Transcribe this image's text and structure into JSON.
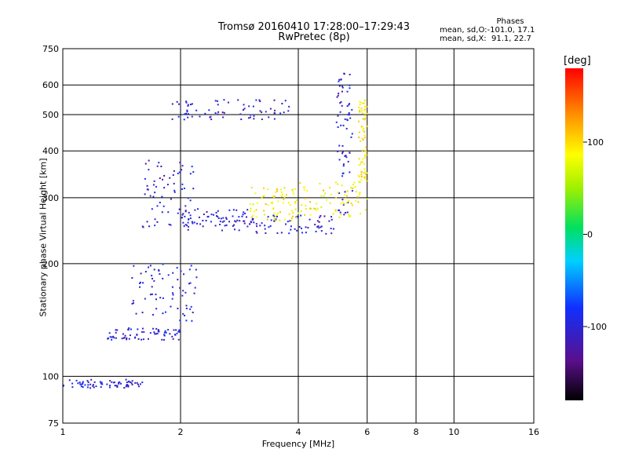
{
  "chart_data": {
    "type": "scatter",
    "title": "Tromsø 20160410 17:28:00–17:29:43",
    "subtitle": "RwPretec (8p)",
    "xlabel": "Frequency [MHz]",
    "ylabel": "Stationary phase Virtual Height [km]",
    "x_scale": "log",
    "y_scale": "log",
    "xlim": [
      1,
      16
    ],
    "ylim": [
      75,
      750
    ],
    "x_ticks": [
      1,
      2,
      4,
      6,
      8,
      10,
      16
    ],
    "y_ticks": [
      75,
      100,
      200,
      300,
      400,
      500,
      600,
      750
    ],
    "grid": true,
    "phase_header": "Phases",
    "phase_stats": [
      "mean, sd,O:-101.0, 17.1",
      "mean, sd,X:  91.1, 22.7"
    ],
    "colorbar": {
      "label": "[deg]",
      "range": [
        -180,
        180
      ],
      "ticks": [
        100,
        0,
        -100
      ],
      "colormap": "rainbow (black-purple-blue-cyan-green-yellow-red)"
    },
    "series": [
      {
        "mode": "O",
        "phase_deg_mean": -101,
        "segments": [
          {
            "f_range": [
              1.0,
              1.6
            ],
            "h_range": [
              93,
              98
            ]
          },
          {
            "f_range": [
              1.3,
              2.0
            ],
            "h_range": [
              125,
              135
            ]
          },
          {
            "f_range": [
              1.5,
              2.2
            ],
            "h_range": [
              140,
              200
            ]
          },
          {
            "f_range": [
              1.6,
              2.2
            ],
            "h_range": [
              250,
              390
            ]
          },
          {
            "f_range": [
              2.0,
              3.0
            ],
            "h_range": [
              245,
              280
            ]
          },
          {
            "f_range": [
              3.0,
              5.0
            ],
            "h_range": [
              240,
              270
            ]
          },
          {
            "f_range": [
              5.0,
              5.5
            ],
            "h_range": [
              270,
              650
            ]
          },
          {
            "f_range": [
              1.9,
              3.8
            ],
            "h_range": [
              485,
              550
            ]
          }
        ]
      },
      {
        "mode": "X",
        "phase_deg_mean": 91,
        "segments": [
          {
            "f_range": [
              3.0,
              4.0
            ],
            "h_range": [
              260,
              320
            ]
          },
          {
            "f_range": [
              4.0,
              6.0
            ],
            "h_range": [
              265,
              330
            ]
          },
          {
            "f_range": [
              5.7,
              6.0
            ],
            "h_range": [
              330,
              550
            ]
          }
        ]
      }
    ]
  }
}
